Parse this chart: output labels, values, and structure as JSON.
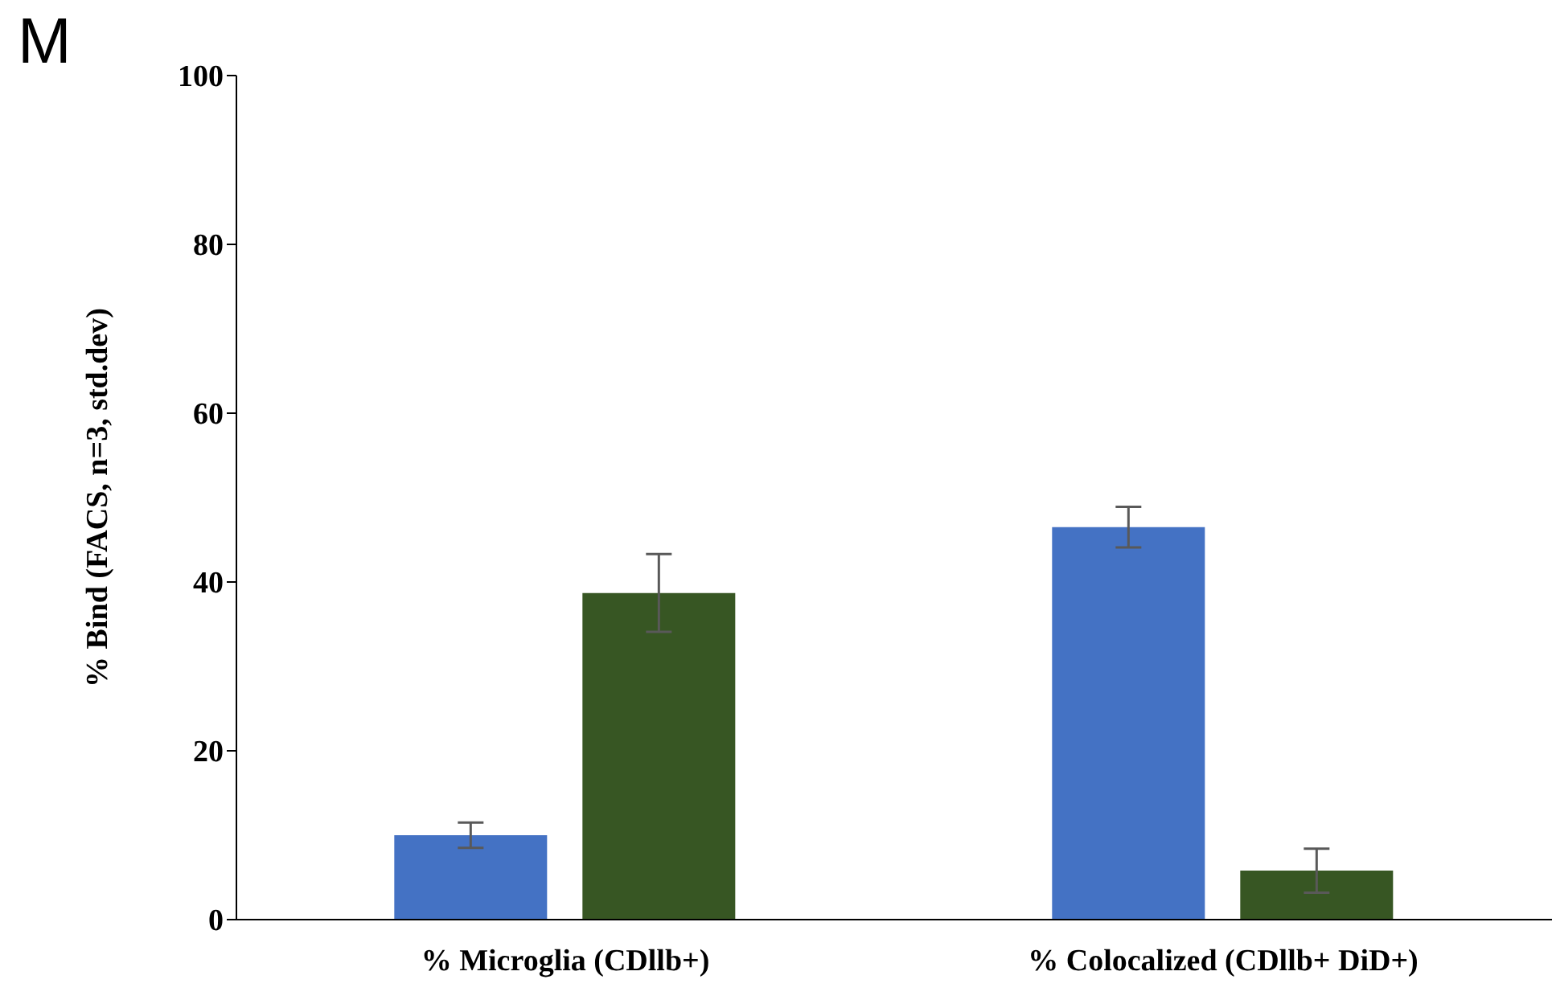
{
  "chart_data": {
    "type": "bar",
    "annotations": [
      "M"
    ],
    "ylabel": "% Bind (FACS, n=3, std.dev)",
    "categories": [
      "% Microglia (CDllb+)",
      "% Colocalized (CDllb+ DiD+)"
    ],
    "series": [
      {
        "color": "#4472c4",
        "values": [
          10,
          46.5
        ],
        "errors": [
          1.5,
          2.4
        ]
      },
      {
        "color": "#375623",
        "values": [
          38.7,
          5.8
        ],
        "errors": [
          4.6,
          2.6
        ]
      }
    ],
    "ylim": [
      0,
      100
    ],
    "yticks": [
      0,
      20,
      40,
      60,
      80,
      100
    ],
    "grid": false,
    "legend": false
  }
}
